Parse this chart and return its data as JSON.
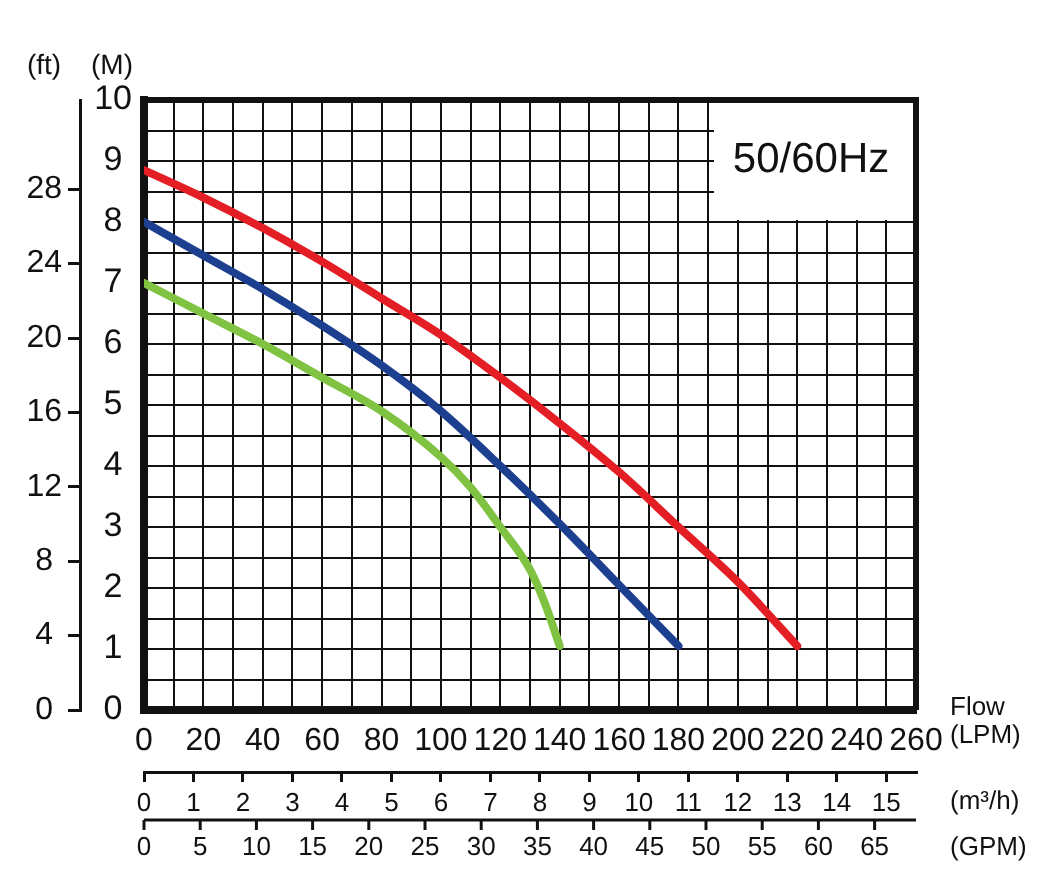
{
  "chart_data": {
    "type": "line",
    "annotations": [
      "50/60Hz",
      "0",
      "5",
      "10",
      "15",
      "20",
      "25",
      "30",
      "35",
      "40",
      "45",
      "50",
      "55",
      "60",
      "65",
      "(GPM)"
    ],
    "xlabel": "Flow (LPM)",
    "ylabel": "(M)",
    "y2label": "(ft)",
    "x2label": "(m³/h)",
    "xlim": [
      0,
      260
    ],
    "xticks": [
      0,
      {
        "value": 10,
        "label": null
      },
      20,
      {
        "value": 30,
        "label": null
      },
      40,
      {
        "value": 50,
        "label": null
      },
      60,
      {
        "value": 70,
        "label": null
      },
      80,
      {
        "value": 90,
        "label": null
      },
      100,
      {
        "value": 110,
        "label": null
      },
      120,
      {
        "value": 130,
        "label": null
      },
      140,
      {
        "value": 150,
        "label": null
      },
      160,
      {
        "value": 170,
        "label": null
      },
      180,
      {
        "value": 190,
        "label": null
      },
      200,
      {
        "value": 210,
        "label": null
      },
      220,
      {
        "value": 230,
        "label": null
      },
      240,
      {
        "value": 250,
        "label": null
      },
      260
    ],
    "ylim": [
      0,
      10
    ],
    "yticks": [
      0,
      {
        "value": 0.5,
        "label": null
      },
      1,
      {
        "value": 1.5,
        "label": null
      },
      2,
      {
        "value": 2.5,
        "label": null
      },
      3,
      {
        "value": 3.5,
        "label": null
      },
      4,
      {
        "value": 4.5,
        "label": null
      },
      5,
      {
        "value": 5.5,
        "label": null
      },
      6,
      {
        "value": 6.5,
        "label": null
      },
      7,
      {
        "value": 7.5,
        "label": null
      },
      8,
      {
        "value": 8.5,
        "label": null
      },
      9,
      {
        "value": 9.5,
        "label": null
      },
      10
    ],
    "y2lim": [
      0,
      32.8
    ],
    "y2ticks": [
      0,
      4,
      8,
      12,
      16,
      20,
      24,
      28
    ],
    "x2lim": [
      0,
      15.6
    ],
    "x2ticks": [
      0,
      1,
      2,
      3,
      4,
      5,
      6,
      7,
      8,
      9,
      10,
      11,
      12,
      13,
      14,
      15
    ],
    "grid": true,
    "series": [
      {
        "color": "#e31e24",
        "x": [
          0,
          20,
          40,
          60,
          80,
          100,
          120,
          140,
          160,
          180,
          200,
          220
        ],
        "values": [
          8.85,
          8.4,
          7.9,
          7.35,
          6.75,
          6.15,
          5.45,
          4.7,
          3.9,
          3.0,
          2.1,
          1.05
        ]
      },
      {
        "color": "#1d3f8f",
        "x": [
          0,
          20,
          40,
          60,
          80,
          100,
          120,
          140,
          160,
          180
        ],
        "values": [
          8.0,
          7.45,
          6.9,
          6.3,
          5.65,
          4.9,
          4.0,
          3.05,
          2.05,
          1.05
        ]
      },
      {
        "color": "#80c342",
        "x": [
          0,
          20,
          40,
          60,
          80,
          100,
          110,
          120,
          130,
          135,
          140
        ],
        "values": [
          7.0,
          6.5,
          6.0,
          5.45,
          4.9,
          4.15,
          3.65,
          3.0,
          2.3,
          1.75,
          1.05
        ]
      }
    ]
  }
}
